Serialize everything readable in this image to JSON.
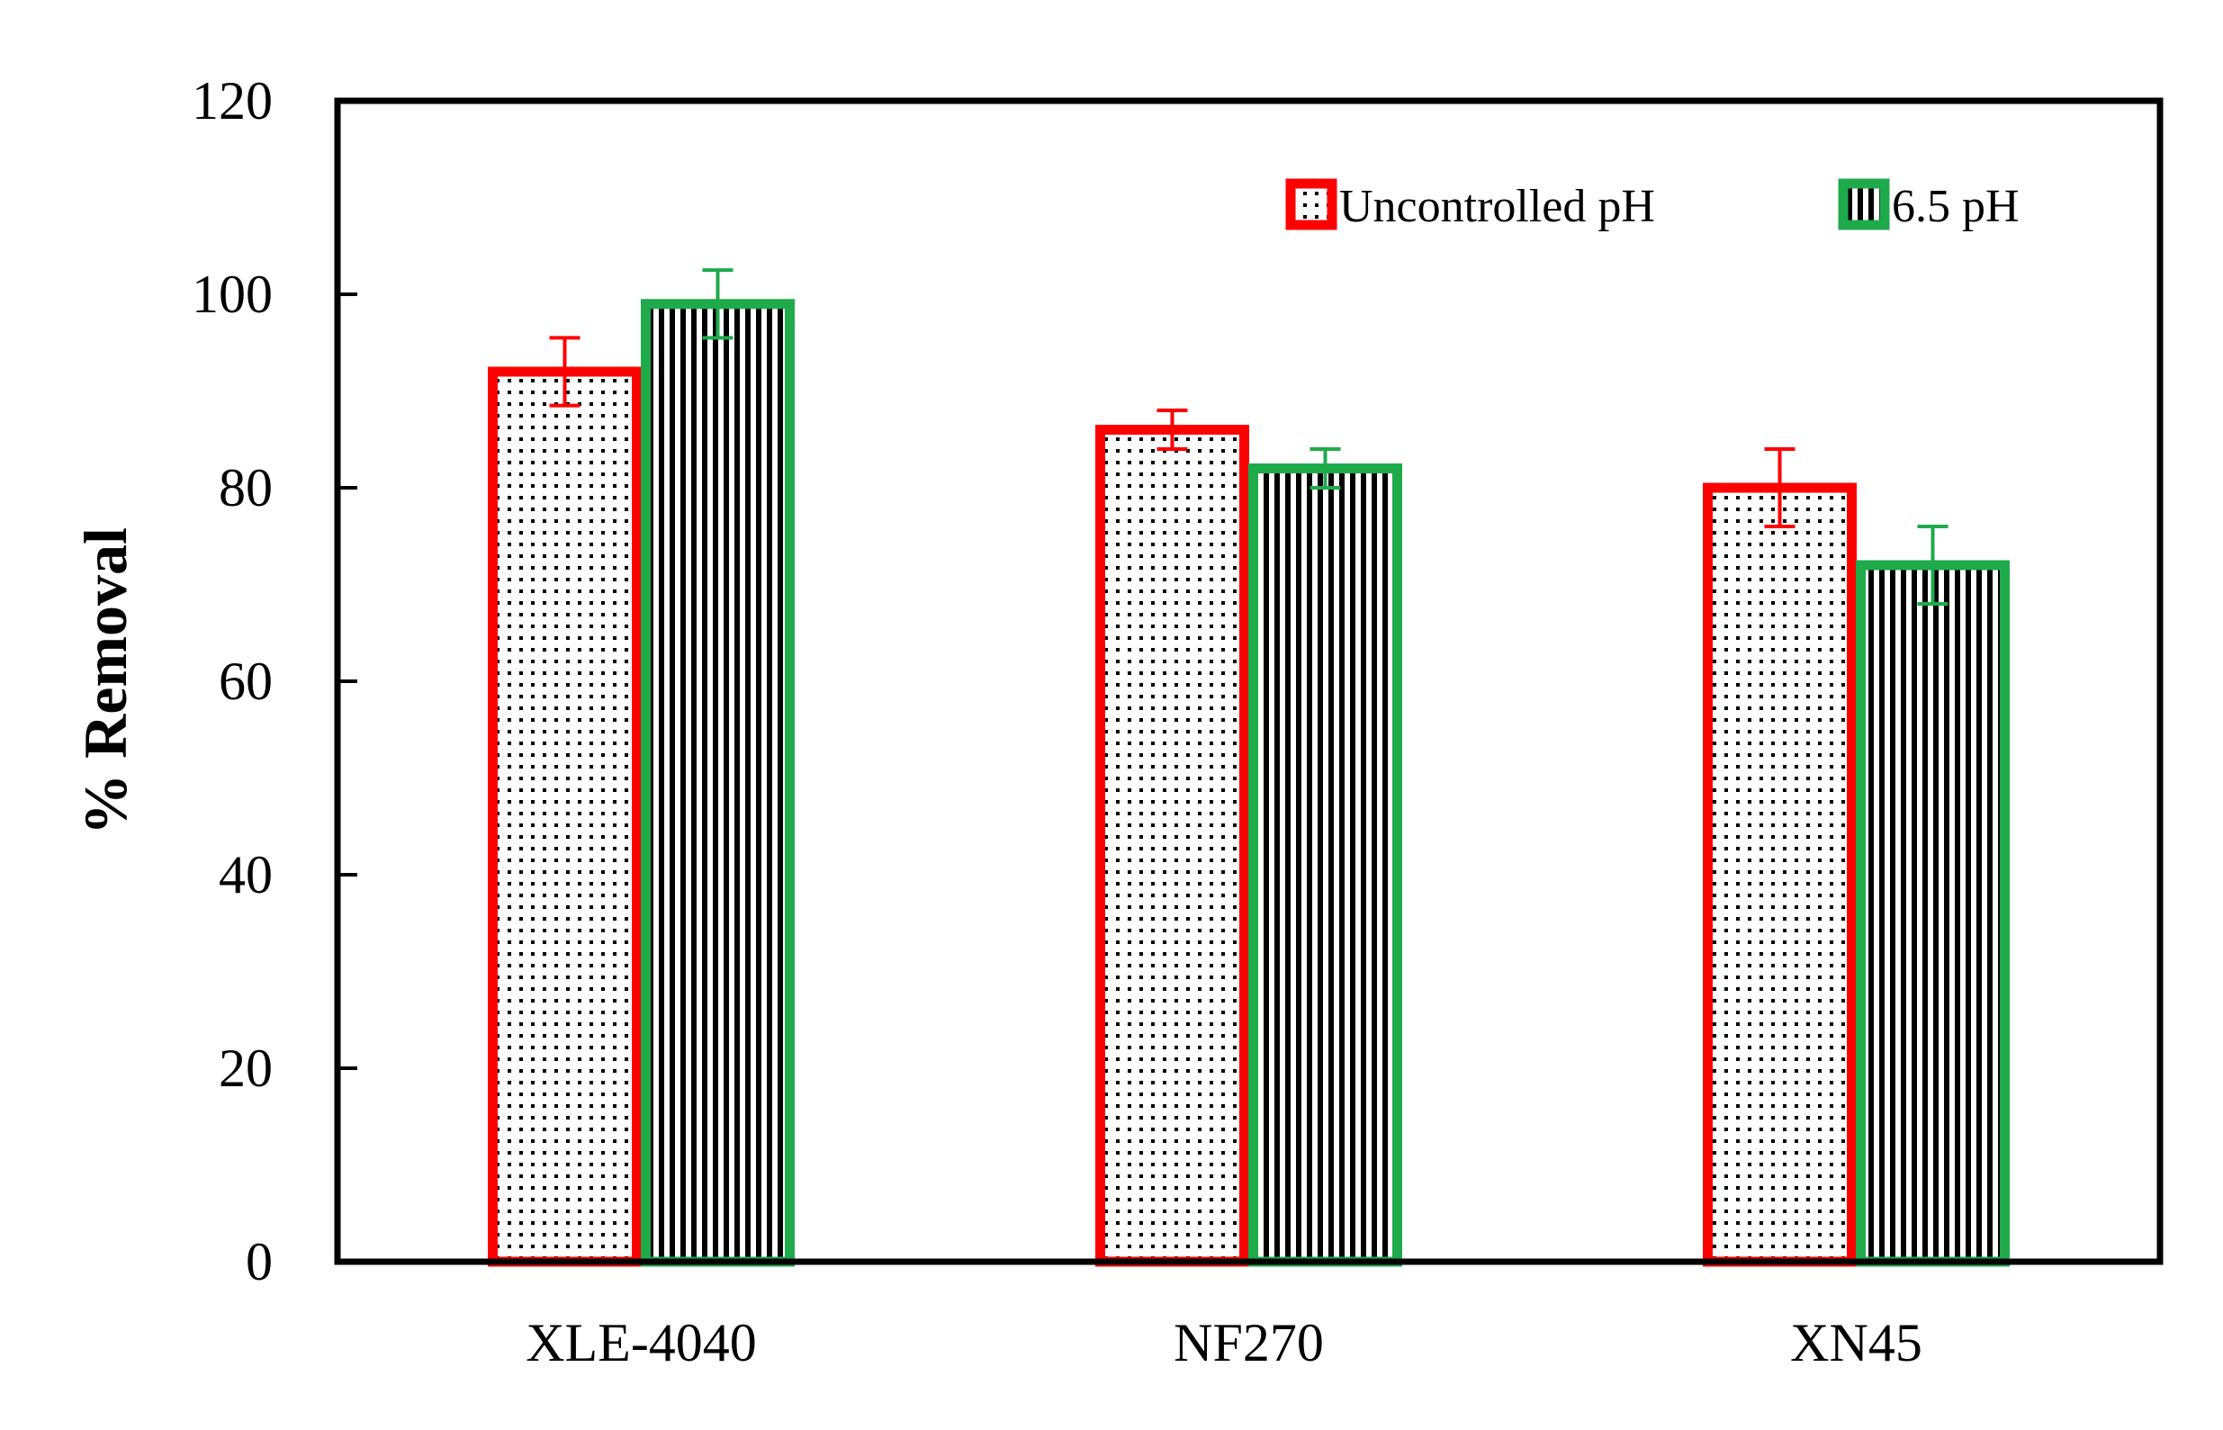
{
  "chart_data": {
    "type": "bar",
    "title": "",
    "xlabel": "",
    "ylabel": "% Removal",
    "ylim": [
      0,
      120
    ],
    "yticks": [
      0,
      20,
      40,
      60,
      80,
      100,
      120
    ],
    "categories": [
      "XLE-4040",
      "NF270",
      "XN45"
    ],
    "grid": false,
    "legend_position": "top-right",
    "series": [
      {
        "name": "Uncontrolled pH",
        "values": [
          92,
          86,
          80
        ],
        "error": [
          3.5,
          2,
          4
        ],
        "color": "#ff0000",
        "pattern": "dots"
      },
      {
        "name": "6.5 pH",
        "values": [
          99,
          82,
          72
        ],
        "error": [
          3.5,
          2,
          4
        ],
        "color": "#1faa4b",
        "pattern": "vertical-stripes"
      }
    ]
  }
}
